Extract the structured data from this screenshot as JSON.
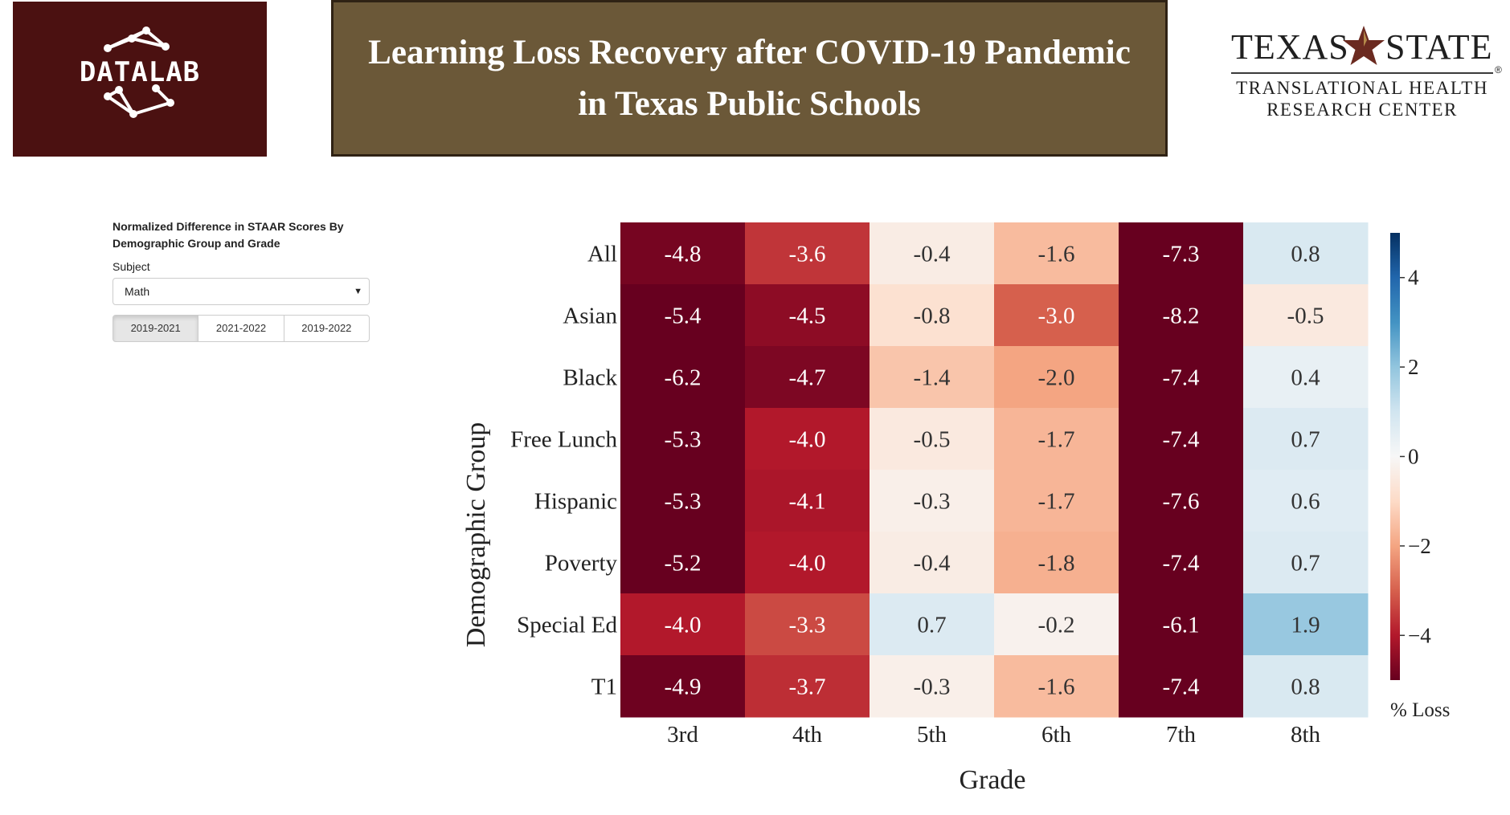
{
  "header": {
    "logo_text": "DATALAB",
    "title_line1": "Learning Loss Recovery after COVID-19 Pandemic",
    "title_line2": "in Texas Public Schools",
    "brand_left": "TEXAS",
    "brand_right": "STATE",
    "brand_sub_line1": "TRANSLATIONAL HEALTH",
    "brand_sub_line2": "RESEARCH CENTER",
    "brand_reg": "®"
  },
  "sidebar": {
    "heading_line1": "Normalized Difference in STAAR Scores By",
    "heading_line2": "Demographic Group and Grade",
    "subject_label": "Subject",
    "subject_value": "Math",
    "periods": [
      {
        "label": "2019-2021",
        "active": true
      },
      {
        "label": "2021-2022",
        "active": false
      },
      {
        "label": "2019-2022",
        "active": false
      }
    ]
  },
  "chart_data": {
    "type": "heatmap",
    "xlabel": "Grade",
    "ylabel": "Demographic Group",
    "x": [
      "3rd",
      "4th",
      "5th",
      "6th",
      "7th",
      "8th"
    ],
    "y": [
      "All",
      "Asian",
      "Black",
      "Free Lunch",
      "Hispanic",
      "Poverty",
      "Special Ed",
      "T1"
    ],
    "values": [
      [
        -4.8,
        -3.6,
        -0.4,
        -1.6,
        -7.3,
        0.8
      ],
      [
        -5.4,
        -4.5,
        -0.8,
        -3.0,
        -8.2,
        -0.5
      ],
      [
        -6.2,
        -4.7,
        -1.4,
        -2.0,
        -7.4,
        0.4
      ],
      [
        -5.3,
        -4.0,
        -0.5,
        -1.7,
        -7.4,
        0.7
      ],
      [
        -5.3,
        -4.1,
        -0.3,
        -1.7,
        -7.6,
        0.6
      ],
      [
        -5.2,
        -4.0,
        -0.4,
        -1.8,
        -7.4,
        0.7
      ],
      [
        -4.0,
        -3.3,
        0.7,
        -0.2,
        -6.1,
        1.9
      ],
      [
        -4.9,
        -3.7,
        -0.3,
        -1.6,
        -7.4,
        0.8
      ]
    ],
    "colorbar": {
      "label": "% Loss",
      "range": [
        -5,
        5
      ],
      "ticks": [
        4,
        2,
        0,
        -2,
        -4
      ],
      "tick_labels": [
        "4",
        "2",
        "0",
        "−2",
        "−4"
      ],
      "colormap": "RdBu"
    }
  }
}
